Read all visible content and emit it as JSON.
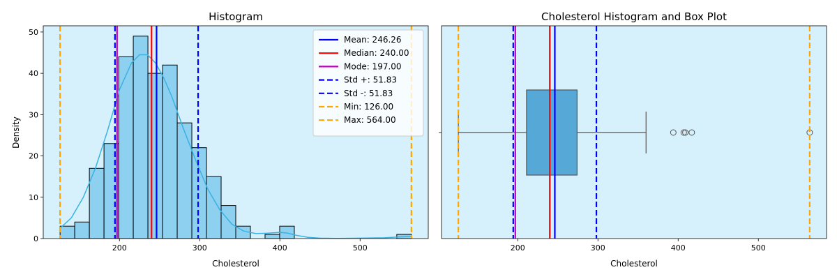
{
  "chart_data": [
    {
      "type": "bar",
      "title": "Histogram",
      "xlabel": "Cholesterol",
      "ylabel": "Density",
      "xlim": [
        105,
        585
      ],
      "ylim": [
        0,
        51.5
      ],
      "xticks": [
        200,
        300,
        400,
        500
      ],
      "yticks": [
        0,
        10,
        20,
        30,
        40,
        50
      ],
      "background": "#d6f1fc",
      "bar_color": "#8dd0f0",
      "kde_color": "#3ab3e3",
      "bins": [
        {
          "x0": 126.0,
          "x1": 144.25,
          "count": 3
        },
        {
          "x0": 144.25,
          "x1": 162.5,
          "count": 4
        },
        {
          "x0": 162.5,
          "x1": 180.75,
          "count": 17
        },
        {
          "x0": 180.75,
          "x1": 199.0,
          "count": 23
        },
        {
          "x0": 199.0,
          "x1": 217.25,
          "count": 44
        },
        {
          "x0": 217.25,
          "x1": 235.5,
          "count": 49
        },
        {
          "x0": 235.5,
          "x1": 253.75,
          "count": 40
        },
        {
          "x0": 253.75,
          "x1": 272.0,
          "count": 42
        },
        {
          "x0": 272.0,
          "x1": 290.25,
          "count": 28
        },
        {
          "x0": 290.25,
          "x1": 308.5,
          "count": 22
        },
        {
          "x0": 308.5,
          "x1": 326.75,
          "count": 15
        },
        {
          "x0": 326.75,
          "x1": 345.0,
          "count": 8
        },
        {
          "x0": 345.0,
          "x1": 363.25,
          "count": 3
        },
        {
          "x0": 363.25,
          "x1": 381.5,
          "count": 0
        },
        {
          "x0": 381.5,
          "x1": 399.75,
          "count": 1
        },
        {
          "x0": 399.75,
          "x1": 418.0,
          "count": 3
        },
        {
          "x0": 418.0,
          "x1": 436.25,
          "count": 0
        },
        {
          "x0": 436.25,
          "x1": 454.5,
          "count": 0
        },
        {
          "x0": 454.5,
          "x1": 472.75,
          "count": 0
        },
        {
          "x0": 472.75,
          "x1": 491.0,
          "count": 0
        },
        {
          "x0": 491.0,
          "x1": 509.25,
          "count": 0
        },
        {
          "x0": 509.25,
          "x1": 527.5,
          "count": 0
        },
        {
          "x0": 527.5,
          "x1": 545.75,
          "count": 0
        },
        {
          "x0": 545.75,
          "x1": 564.0,
          "count": 1
        }
      ],
      "kde": {
        "x": [
          126,
          140,
          155,
          170,
          185,
          200,
          215,
          225,
          235,
          245,
          255,
          265,
          280,
          295,
          310,
          325,
          340,
          355,
          370,
          385,
          400,
          410,
          420,
          435,
          450,
          470,
          500,
          530,
          550,
          564
        ],
        "y": [
          2.5,
          5.0,
          10.0,
          17.0,
          26.0,
          36.0,
          42.5,
          44.5,
          44.5,
          42.5,
          39.0,
          34.5,
          26.5,
          19.0,
          12.0,
          7.0,
          3.5,
          1.8,
          1.2,
          1.3,
          1.5,
          1.3,
          0.8,
          0.3,
          0.1,
          0.05,
          0.1,
          0.2,
          0.4,
          0.5
        ]
      },
      "lines": [
        {
          "label": "Mean: 246.26",
          "value": 246.26,
          "color": "#0000ff",
          "style": "solid"
        },
        {
          "label": "Median: 240.00",
          "value": 240.0,
          "color": "#ff0000",
          "style": "solid"
        },
        {
          "label": "Mode: 197.00",
          "value": 197.0,
          "color": "#bf00bf",
          "style": "solid"
        },
        {
          "label": "Std +: 51.83",
          "value": 298.09,
          "color": "#0000ff",
          "style": "dashed"
        },
        {
          "label": "Std -: 51.83",
          "value": 194.43,
          "color": "#0000ff",
          "style": "dashed"
        },
        {
          "label": "Min: 126.00",
          "value": 126.0,
          "color": "#ffa500",
          "style": "dashed"
        },
        {
          "label": "Max: 564.00",
          "value": 564.0,
          "color": "#ffa500",
          "style": "dashed"
        }
      ],
      "legend": "top-right"
    },
    {
      "type": "box",
      "title": "Cholesterol Histogram and Box Plot",
      "xlabel": "Cholesterol",
      "xlim": [
        105,
        585
      ],
      "xticks": [
        200,
        300,
        400,
        500
      ],
      "background": "#d6f1fc",
      "box_color": "#56a9d6",
      "box": {
        "whisker_low": 126,
        "q1": 211,
        "median": 240,
        "q3": 274,
        "whisker_high": 360
      },
      "outliers": [
        394,
        407,
        409,
        417,
        564
      ],
      "lines": [
        {
          "value": 246.26,
          "color": "#0000ff",
          "style": "solid"
        },
        {
          "value": 240.0,
          "color": "#ff0000",
          "style": "solid"
        },
        {
          "value": 197.0,
          "color": "#bf00bf",
          "style": "solid"
        },
        {
          "value": 298.09,
          "color": "#0000ff",
          "style": "dashed"
        },
        {
          "value": 194.43,
          "color": "#0000ff",
          "style": "dashed"
        },
        {
          "value": 126.0,
          "color": "#ffa500",
          "style": "dashed"
        },
        {
          "value": 564.0,
          "color": "#ffa500",
          "style": "dashed"
        }
      ]
    }
  ]
}
